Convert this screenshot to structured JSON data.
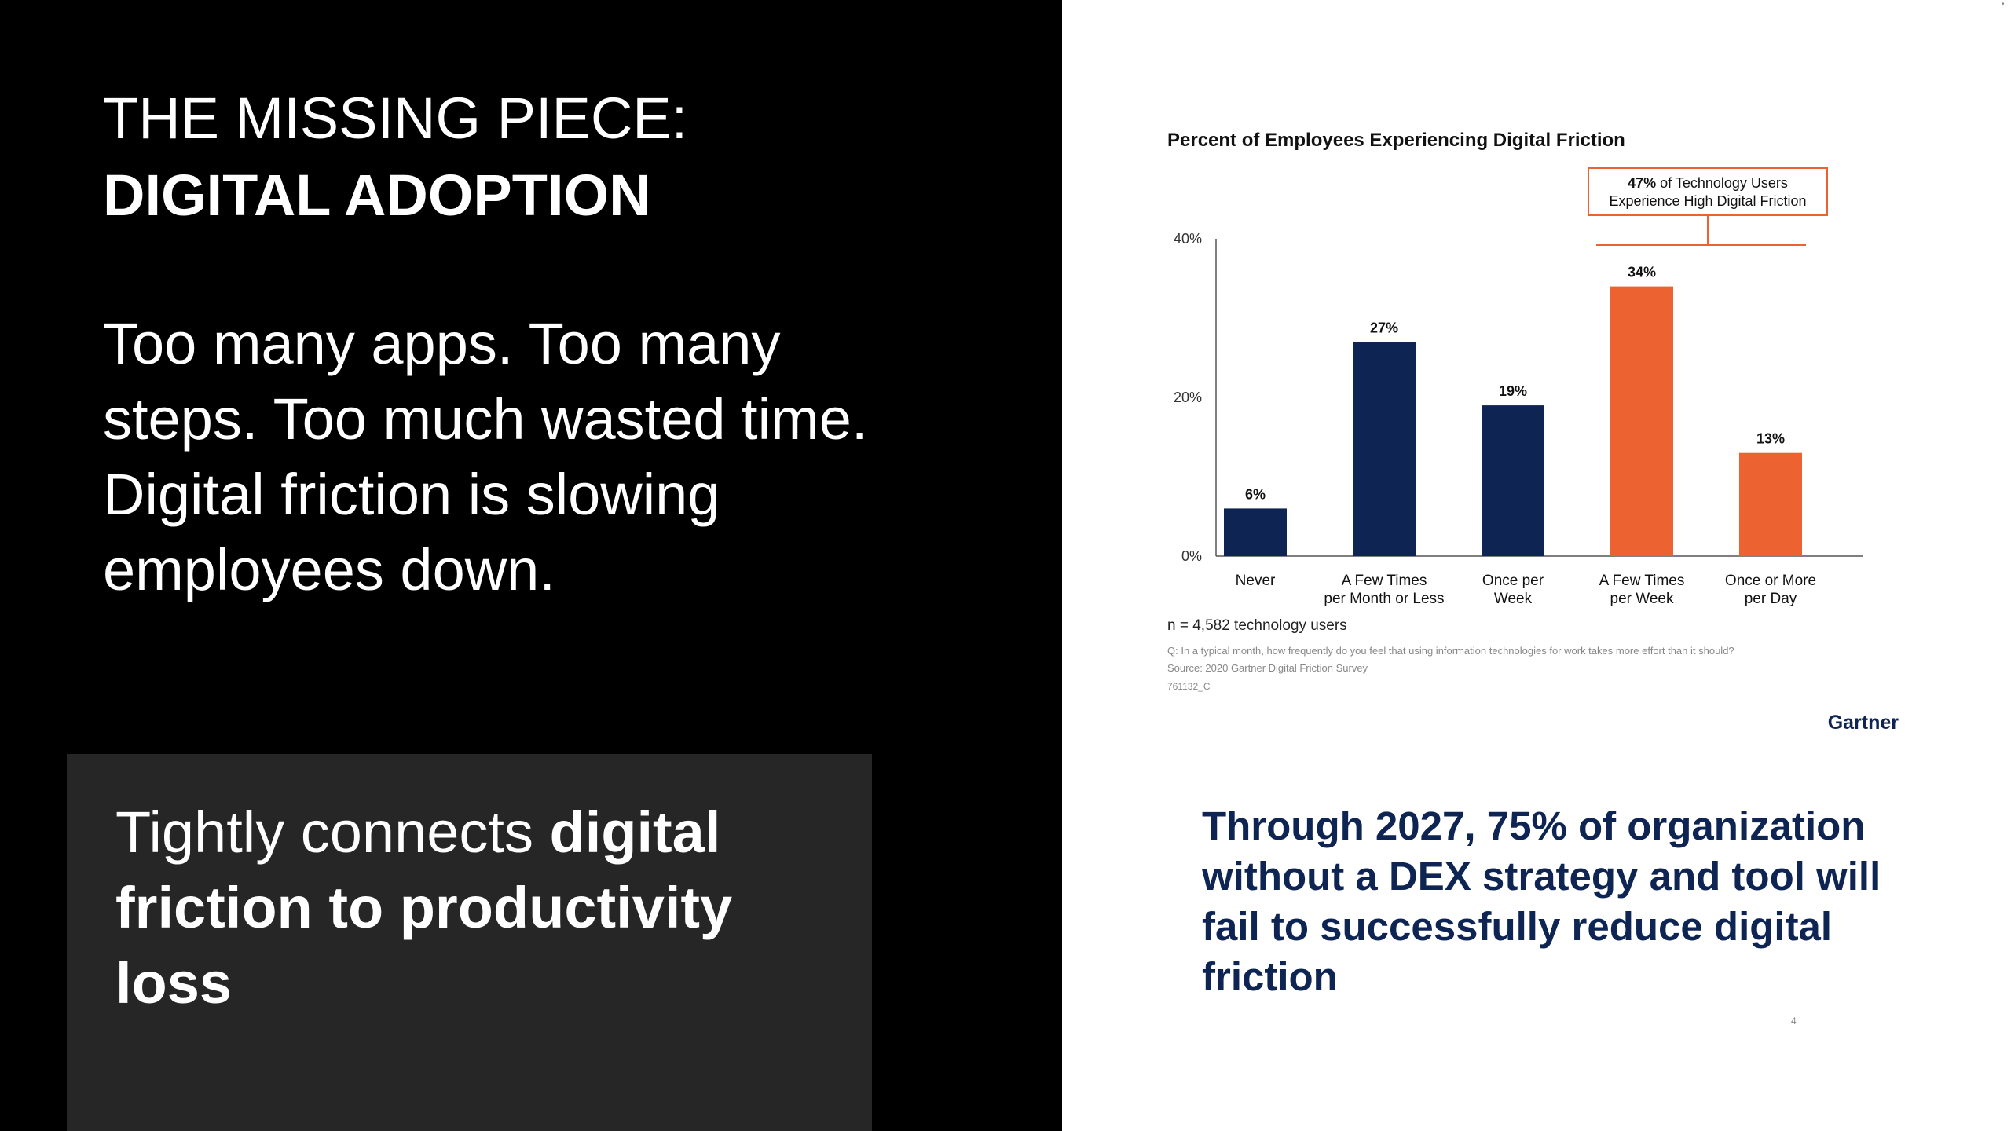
{
  "slide": {
    "title_line1": "THE MISSING PIECE:",
    "title_line2": "DIGITAL ADOPTION",
    "body": "Too many apps. Too many steps. Too much wasted time. Digital friction is slowing employees down.",
    "callout_normal": "Tightly connects ",
    "callout_bold": "digital friction to productivity loss",
    "prediction": "Through 2027, 75% of organization without a DEX strategy and tool will fail to successfully reduce digital friction",
    "page_number": "4"
  },
  "chart_data": {
    "type": "bar",
    "title": "Percent of Employees Experiencing Digital Friction",
    "categories": [
      [
        "Never"
      ],
      [
        "A Few Times",
        "per Month or Less"
      ],
      [
        "Once per",
        "Week"
      ],
      [
        "A Few Times",
        "per Week"
      ],
      [
        "Once or More",
        "per Day"
      ]
    ],
    "values": [
      6,
      27,
      19,
      34,
      13
    ],
    "data_labels": [
      "6%",
      "27%",
      "19%",
      "34%",
      "13%"
    ],
    "highlighted": [
      false,
      false,
      false,
      true,
      true
    ],
    "y_ticks": [
      0,
      20,
      40
    ],
    "y_tick_labels": [
      "0%",
      "20%",
      "40%"
    ],
    "ylim": [
      0,
      40
    ],
    "grid": false,
    "annotation": {
      "bold": "47%",
      "line1_rest": " of Technology Users",
      "line2": "Experience High Digital Friction"
    },
    "sample_note": "n = 4,582 technology users",
    "question_note": "Q: In a typical month, how frequently do you feel that using information technologies for work takes more effort than it should?",
    "source_note": "Source: 2020 Gartner Digital Friction Survey",
    "id_note": "761132_C",
    "brand": "Gartner",
    "colors": {
      "base": "#0e2553",
      "highlight": "#ec6231",
      "axis": "#555555",
      "text": "#111111",
      "note": "#888888"
    }
  }
}
